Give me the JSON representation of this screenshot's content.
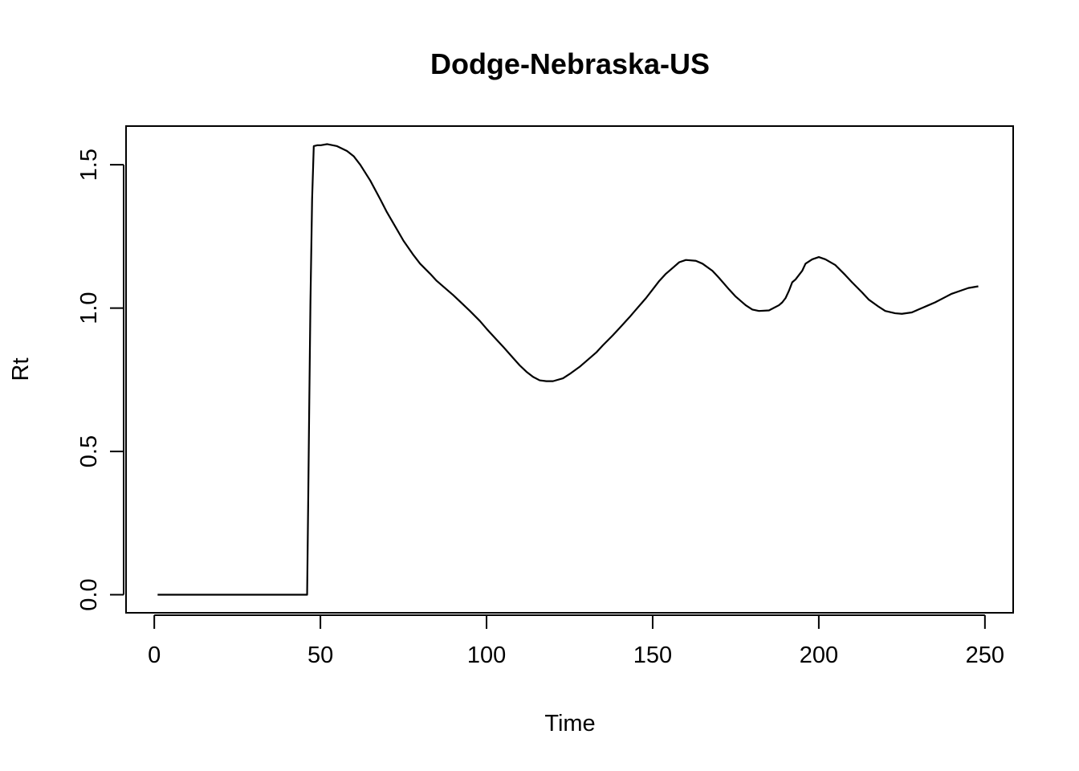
{
  "chart_data": {
    "type": "line",
    "title": "Dodge-Nebraska-US",
    "xlabel": "Time",
    "ylabel": "Rt",
    "xlim": [
      -8.5,
      258.5
    ],
    "ylim": [
      -0.063,
      1.635
    ],
    "x_ticks": [
      0,
      50,
      100,
      150,
      200,
      250
    ],
    "x_tick_labels": [
      "0",
      "50",
      "100",
      "150",
      "200",
      "250"
    ],
    "y_ticks": [
      0.0,
      0.5,
      1.0,
      1.5
    ],
    "y_tick_labels": [
      "0.0",
      "0.5",
      "1.0",
      "1.5"
    ],
    "grid": false,
    "legend": "none",
    "series": [
      {
        "x": [
          1,
          10,
          20,
          30,
          40,
          46,
          46.3,
          46.6,
          47,
          47.5,
          48,
          49,
          50,
          52,
          55,
          58,
          60,
          62,
          65,
          68,
          70,
          73,
          75,
          78,
          80,
          83,
          85,
          88,
          90,
          93,
          95,
          98,
          100,
          103,
          105,
          108,
          110,
          112,
          114,
          116,
          118,
          120,
          123,
          125,
          128,
          130,
          133,
          135,
          138,
          140,
          143,
          145,
          148,
          150,
          152,
          154,
          156,
          158,
          160,
          163,
          165,
          168,
          170,
          173,
          175,
          178,
          180,
          182,
          185,
          188,
          189,
          190,
          191,
          192,
          193,
          194,
          195,
          196,
          198,
          200,
          202,
          205,
          208,
          210,
          213,
          215,
          218,
          220,
          223,
          225,
          228,
          230,
          233,
          235,
          238,
          240,
          243,
          245,
          248
        ],
        "y": [
          0.0,
          0.0,
          0.0,
          0.0,
          0.0,
          0.0,
          0.3,
          0.62,
          1.02,
          1.38,
          1.565,
          1.568,
          1.568,
          1.572,
          1.565,
          1.548,
          1.53,
          1.5,
          1.445,
          1.38,
          1.335,
          1.275,
          1.235,
          1.185,
          1.155,
          1.12,
          1.095,
          1.065,
          1.045,
          1.012,
          0.99,
          0.955,
          0.928,
          0.89,
          0.865,
          0.826,
          0.8,
          0.778,
          0.76,
          0.748,
          0.745,
          0.745,
          0.755,
          0.77,
          0.795,
          0.815,
          0.845,
          0.87,
          0.905,
          0.93,
          0.968,
          0.995,
          1.035,
          1.065,
          1.095,
          1.12,
          1.14,
          1.16,
          1.168,
          1.165,
          1.155,
          1.13,
          1.105,
          1.065,
          1.04,
          1.01,
          0.995,
          0.99,
          0.992,
          1.01,
          1.02,
          1.035,
          1.06,
          1.09,
          1.1,
          1.115,
          1.13,
          1.155,
          1.17,
          1.178,
          1.17,
          1.15,
          1.115,
          1.09,
          1.055,
          1.03,
          1.005,
          0.99,
          0.982,
          0.98,
          0.985,
          0.995,
          1.01,
          1.02,
          1.038,
          1.05,
          1.062,
          1.07,
          1.076
        ]
      }
    ]
  }
}
